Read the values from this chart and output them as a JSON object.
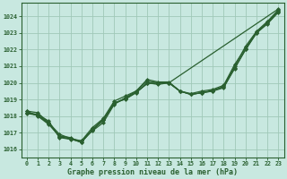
{
  "title": "Graphe pression niveau de la mer (hPa)",
  "bg_color": "#c8e8e0",
  "grid_color": "#a0c8b8",
  "line_color": "#2a6030",
  "xlim": [
    -0.5,
    23.5
  ],
  "ylim": [
    1015.5,
    1024.8
  ],
  "yticks": [
    1016,
    1017,
    1018,
    1019,
    1020,
    1021,
    1022,
    1023,
    1024
  ],
  "xticks": [
    0,
    1,
    2,
    3,
    4,
    5,
    6,
    7,
    8,
    9,
    10,
    11,
    12,
    13,
    14,
    15,
    16,
    17,
    18,
    19,
    20,
    21,
    22,
    23
  ],
  "lines": [
    {
      "x": [
        0,
        1,
        2,
        3,
        4,
        5,
        6,
        7,
        8,
        9,
        10,
        11,
        12,
        13,
        14,
        15,
        16,
        17,
        18,
        19,
        20,
        21,
        22,
        23
      ],
      "y": [
        1018.2,
        1018.1,
        1017.7,
        1016.7,
        1016.6,
        1016.5,
        1017.1,
        1017.6,
        1018.7,
        1019.1,
        1019.5,
        1020.1,
        1020.0,
        1020.0,
        1019.5,
        1019.3,
        1019.4,
        1019.5,
        1019.7,
        1020.9,
        1022.0,
        1023.0,
        1023.6,
        1024.3
      ],
      "marker": "D",
      "markersize": 2.0,
      "linewidth": 0.9,
      "linestyle": "-"
    },
    {
      "x": [
        0,
        1,
        2,
        3,
        4,
        5,
        6,
        7,
        8,
        9,
        10,
        11,
        12,
        13,
        14,
        15,
        16,
        17,
        18,
        19,
        20,
        21,
        22,
        23
      ],
      "y": [
        1018.3,
        1018.0,
        1017.5,
        1016.8,
        1016.7,
        1016.4,
        1017.2,
        1017.8,
        1018.8,
        1019.0,
        1019.4,
        1020.0,
        1019.9,
        1020.0,
        1019.5,
        1019.3,
        1019.4,
        1019.5,
        1019.8,
        1021.0,
        1022.2,
        1023.1,
        1023.7,
        1024.4
      ],
      "marker": "D",
      "markersize": 2.0,
      "linewidth": 0.9,
      "linestyle": "-"
    },
    {
      "x": [
        0,
        1,
        2,
        3,
        4,
        5,
        6,
        7,
        8,
        9,
        10,
        11,
        12,
        13,
        14,
        15,
        16,
        17,
        18,
        19,
        20,
        21,
        22,
        23
      ],
      "y": [
        1018.3,
        1018.2,
        1017.6,
        1016.9,
        1016.65,
        1016.5,
        1017.3,
        1017.85,
        1018.9,
        1019.2,
        1019.5,
        1020.2,
        1020.05,
        1020.05,
        1019.5,
        1019.35,
        1019.5,
        1019.6,
        1019.85,
        1021.1,
        1022.1,
        1023.05,
        1023.65,
        1024.35
      ],
      "marker": "D",
      "markersize": 2.0,
      "linewidth": 0.9,
      "linestyle": "-"
    },
    {
      "x": [
        0,
        1,
        2,
        3,
        4,
        5,
        6,
        7,
        8,
        9,
        10,
        11,
        12,
        13,
        23
      ],
      "y": [
        1018.2,
        1018.05,
        1017.55,
        1016.75,
        1016.62,
        1016.42,
        1017.15,
        1017.75,
        1018.75,
        1019.05,
        1019.42,
        1019.95,
        1019.98,
        1020.0,
        1024.45
      ],
      "marker": "D",
      "markersize": 2.0,
      "linewidth": 0.9,
      "linestyle": "-"
    },
    {
      "x": [
        0,
        1,
        2,
        3,
        4,
        5,
        6,
        7,
        8,
        9,
        10,
        11,
        12,
        13,
        14,
        15,
        16,
        17,
        18,
        19,
        20,
        21,
        22,
        23
      ],
      "y": [
        1018.15,
        1018.05,
        1017.6,
        1016.75,
        1016.62,
        1016.42,
        1017.15,
        1017.75,
        1018.75,
        1019.05,
        1019.42,
        1019.95,
        1020.0,
        1019.98,
        1019.5,
        1019.3,
        1019.4,
        1019.55,
        1019.75,
        1020.85,
        1022.0,
        1023.0,
        1023.55,
        1024.25
      ],
      "marker": "D",
      "markersize": 2.0,
      "linewidth": 0.9,
      "linestyle": "-"
    }
  ]
}
